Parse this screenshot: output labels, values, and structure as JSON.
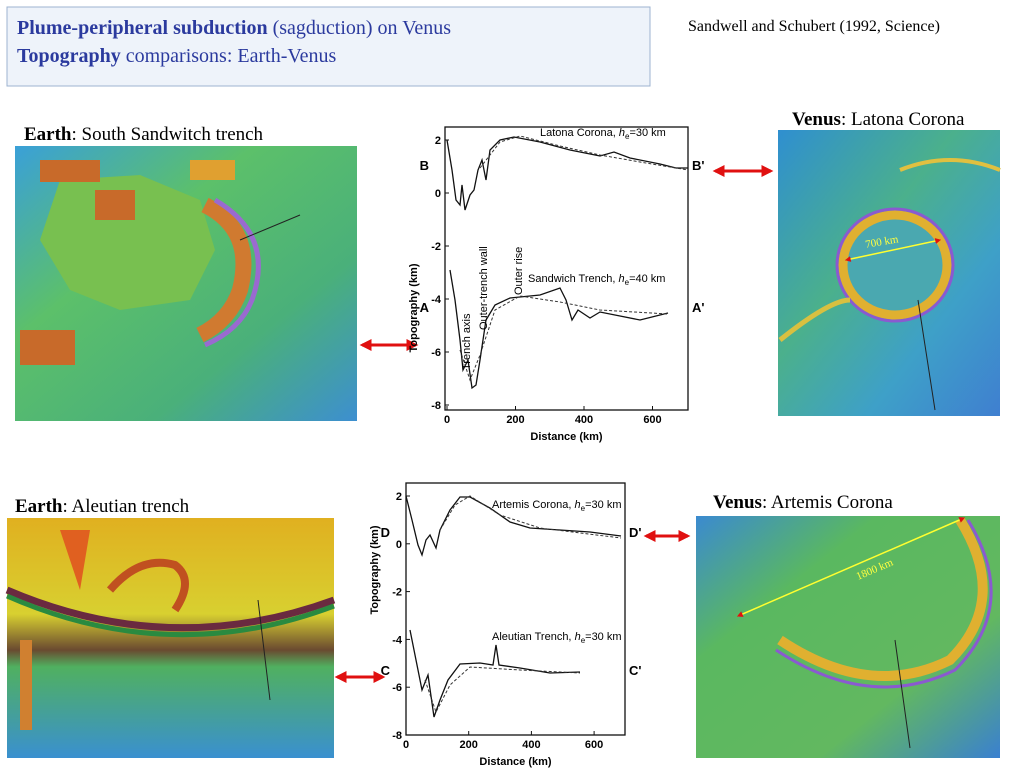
{
  "header": {
    "line1_bold": "Plume-peripheral subduction",
    "line1_rest": " (sagduction) on Venus",
    "line2_bold": "Topography",
    "line2_rest": " comparisons: Earth-Venus"
  },
  "citation": "Sandwell and Schubert (1992, Science)",
  "panels": [
    {
      "bold": "Earth",
      "rest": ": South Sandwitch trench"
    },
    {
      "bold": "Venus",
      "rest": ": Latona Corona",
      "scale": "700 km"
    },
    {
      "bold": "Earth",
      "rest": ": Aleutian trench"
    },
    {
      "bold": "Venus",
      "rest": ": Artemis Corona",
      "scale": "1800 km"
    }
  ],
  "plots": [
    {
      "yticks": [
        "2",
        "0",
        "-2",
        "-4",
        "-6",
        "-8"
      ],
      "xticks": [
        "0",
        "200",
        "400",
        "600"
      ],
      "ylabel": "Topography (km)",
      "xlabel": "Distance (km)",
      "upper": {
        "left": "B",
        "right": "B'",
        "name": "Latona Corona, ",
        "h": "h",
        "sub": "e",
        "rest": "=30 km"
      },
      "lower": {
        "left": "A",
        "right": "A'",
        "name": "Sandwich Trench, ",
        "h": "h",
        "sub": "e",
        "rest": "=40 km"
      },
      "annotations": [
        "Trench axis",
        "Outer-trench wall",
        "Outer rise"
      ]
    },
    {
      "yticks": [
        "2",
        "0",
        "-2",
        "-4",
        "-6",
        "-8"
      ],
      "xticks": [
        "0",
        "200",
        "400",
        "600"
      ],
      "ylabel": "Topography (km)",
      "xlabel": "Distance (km)",
      "upper": {
        "left": "D",
        "right": "D'",
        "name": "Artemis Corona, ",
        "h": "h",
        "sub": "e",
        "rest": "=30 km"
      },
      "lower": {
        "left": "C",
        "right": "C'",
        "name": "Aleutian Trench, ",
        "h": "h",
        "sub": "e",
        "rest": "=30 km"
      }
    }
  ]
}
